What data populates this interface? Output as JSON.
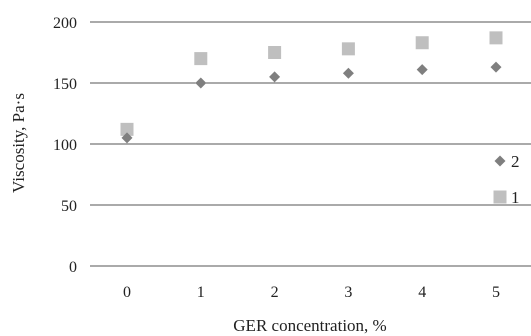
{
  "chart_data": {
    "type": "scatter",
    "x": [
      0,
      1,
      2,
      3,
      4,
      5
    ],
    "xlabel": "GER concentration, %",
    "ylabel": "Viscosity, Pa·s",
    "xticks": [
      "0",
      "1",
      "2",
      "3",
      "4",
      "5"
    ],
    "yticks": [
      "0",
      "50",
      "100",
      "150",
      "200"
    ],
    "ylim": [
      0,
      200
    ],
    "grid": "horizontal",
    "legend_position": "right",
    "series": [
      {
        "name": "2",
        "marker": "diamond",
        "color": "#7f7f7f",
        "values": [
          105,
          150,
          155,
          158,
          161,
          163
        ]
      },
      {
        "name": "1",
        "marker": "square",
        "color": "#bfbfbf",
        "values": [
          112,
          170,
          175,
          178,
          183,
          187
        ]
      }
    ]
  }
}
